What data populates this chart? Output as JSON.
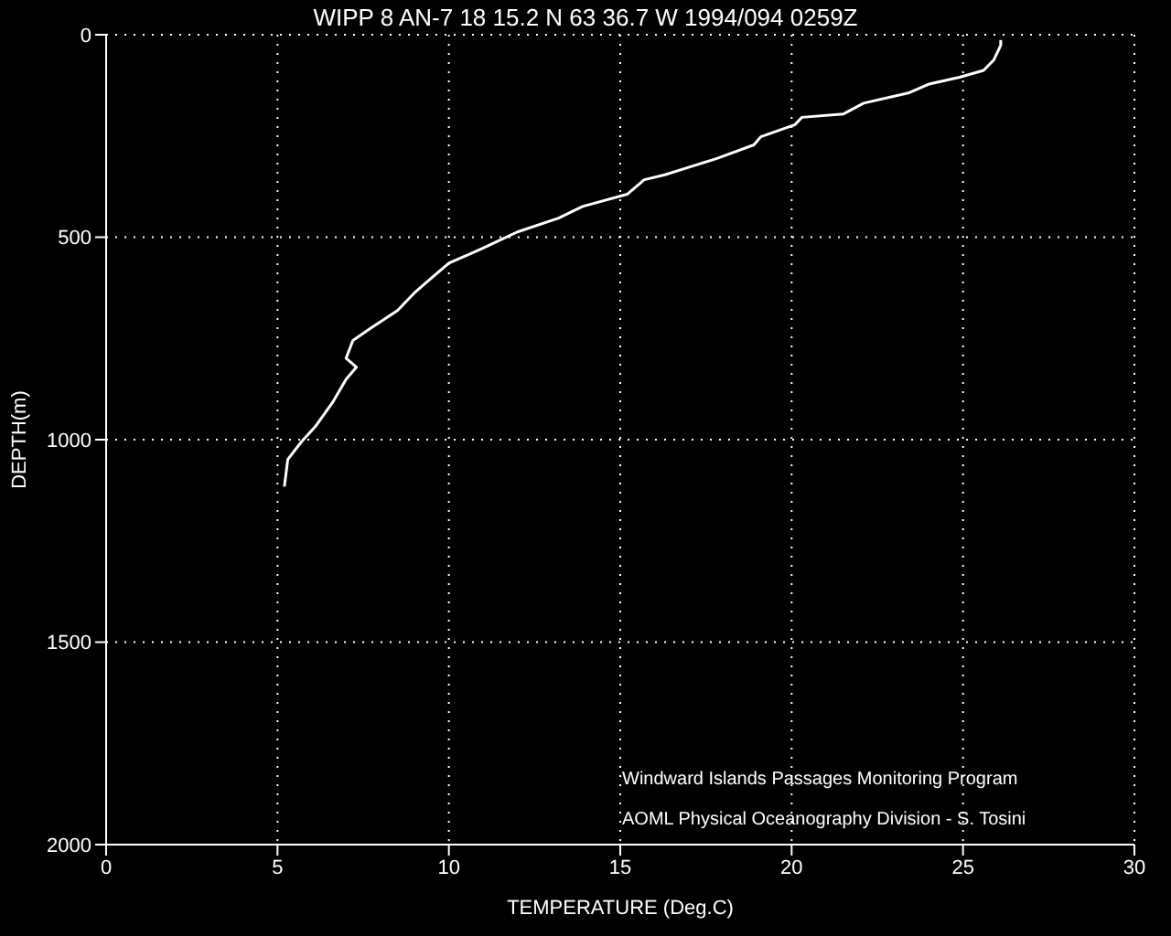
{
  "chart_data": {
    "type": "line",
    "title": "WIPP 8 AN-7  18 15.2 N  63 36.7 W  1994/094 0259Z",
    "xlabel": "TEMPERATURE (Deg.C)",
    "ylabel": "DEPTH(m)",
    "annotations": [
      "Windward Islands Passages Monitoring Program",
      "AOML Physical Oceanography Division - S. Tosini"
    ],
    "xlim": [
      0,
      30
    ],
    "xticks": [
      0,
      5,
      10,
      15,
      20,
      25,
      30
    ],
    "ylim": [
      2000,
      0
    ],
    "yticks": [
      0,
      500,
      1000,
      1500,
      2000
    ],
    "grid": true,
    "line_style": "solid",
    "marker": "none",
    "series": [
      {
        "color": "#ffffff",
        "x": [
          26.1,
          26.1,
          25.9,
          25.6,
          24.9,
          24.0,
          23.4,
          22.1,
          21.5,
          20.3,
          20.1,
          19.1,
          18.9,
          17.8,
          16.3,
          15.7,
          15.2,
          13.9,
          13.2,
          12.0,
          11.0,
          10.0,
          9.5,
          9.0,
          8.5,
          7.7,
          7.2,
          7.0,
          7.3,
          7.0,
          6.6,
          6.1,
          5.7,
          5.3,
          5.2
        ],
        "values": [
          13,
          26,
          62,
          88,
          105,
          122,
          144,
          169,
          196,
          204,
          222,
          252,
          272,
          306,
          346,
          358,
          394,
          424,
          453,
          487,
          527,
          564,
          600,
          637,
          681,
          726,
          755,
          799,
          821,
          851,
          909,
          968,
          1005,
          1049,
          1116
        ]
      }
    ]
  }
}
